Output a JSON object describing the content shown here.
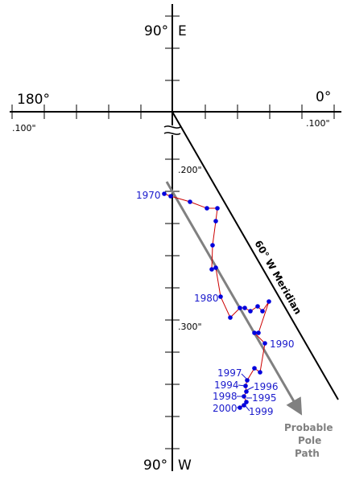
{
  "labels": {
    "top_lat": "90°",
    "top_dir": "E",
    "bottom_lat": "90°",
    "bottom_dir": "W",
    "left_lon": "180°",
    "right_lon": "0°",
    "left_scale": ".100\"",
    "right_scale": ".100\"",
    "scale_200": ".200\"",
    "scale_300": ".300\"",
    "meridian": "60° W Meridian",
    "probable": [
      "Probable",
      "Pole",
      "Path"
    ]
  },
  "years": {
    "y1970": "1970",
    "y1980": "1980",
    "y1990": "1990",
    "y1994": "1994",
    "y1995": "1995",
    "y1996": "1996",
    "y1997": "1997",
    "y1998": "1998",
    "y1999": "1999",
    "y2000": "2000"
  },
  "colors": {
    "points": "#0000dd",
    "path": "#cc0000",
    "trend": "#808080",
    "axes": "#000000"
  }
}
